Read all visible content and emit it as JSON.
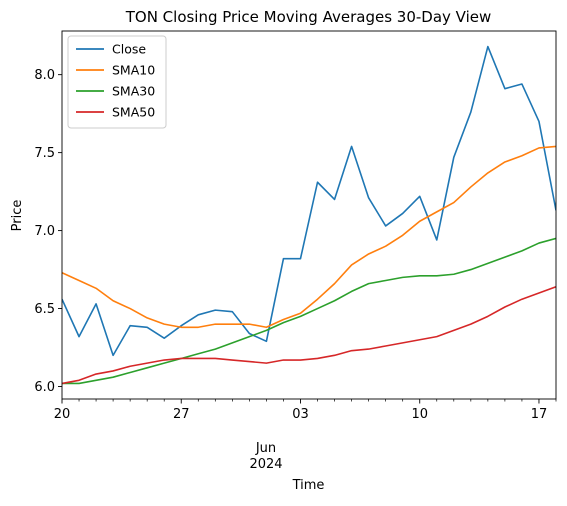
{
  "chart_data": {
    "type": "line",
    "title": "TON Closing Price Moving Averages 30-Day View",
    "xlabel": "Time",
    "ylabel": "Price",
    "x_start": "2024-05-20",
    "x": [
      "2024-05-20",
      "2024-05-21",
      "2024-05-22",
      "2024-05-23",
      "2024-05-24",
      "2024-05-25",
      "2024-05-26",
      "2024-05-27",
      "2024-05-28",
      "2024-05-29",
      "2024-05-30",
      "2024-05-31",
      "2024-06-01",
      "2024-06-02",
      "2024-06-03",
      "2024-06-04",
      "2024-06-05",
      "2024-06-06",
      "2024-06-07",
      "2024-06-08",
      "2024-06-09",
      "2024-06-10",
      "2024-06-11",
      "2024-06-12",
      "2024-06-13",
      "2024-06-14",
      "2024-06-15",
      "2024-06-16",
      "2024-06-17",
      "2024-06-18"
    ],
    "xlim": [
      "2024-05-20",
      "2024-06-18"
    ],
    "ylim": [
      5.92,
      8.28
    ],
    "grid": false,
    "legend_position": "top-left",
    "x_ticks": [
      {
        "date": "2024-05-20",
        "label": "20"
      },
      {
        "date": "2024-05-27",
        "label": "27"
      },
      {
        "date": "2024-06-03",
        "label": "03"
      },
      {
        "date": "2024-06-10",
        "label": "10"
      },
      {
        "date": "2024-06-17",
        "label": "17"
      }
    ],
    "x_minor_ticks": [
      "2024-05-21",
      "2024-05-22",
      "2024-05-23",
      "2024-05-24",
      "2024-05-25",
      "2024-05-26",
      "2024-05-28",
      "2024-05-29",
      "2024-05-30",
      "2024-05-31",
      "2024-06-01",
      "2024-06-02",
      "2024-06-04",
      "2024-06-05",
      "2024-06-06",
      "2024-06-07",
      "2024-06-08",
      "2024-06-09",
      "2024-06-11",
      "2024-06-12",
      "2024-06-13",
      "2024-06-14",
      "2024-06-15",
      "2024-06-16",
      "2024-06-18"
    ],
    "x_secondary_labels": [
      "Jun",
      "2024"
    ],
    "y_ticks": [
      {
        "value": 6.0,
        "label": "6.0"
      },
      {
        "value": 6.5,
        "label": "6.5"
      },
      {
        "value": 7.0,
        "label": "7.0"
      },
      {
        "value": 7.5,
        "label": "7.5"
      },
      {
        "value": 8.0,
        "label": "8.0"
      }
    ],
    "series": [
      {
        "name": "Close",
        "color": "#1f77b4",
        "values": [
          6.56,
          6.32,
          6.53,
          6.2,
          6.39,
          6.38,
          6.31,
          6.39,
          6.46,
          6.49,
          6.48,
          6.34,
          6.29,
          6.82,
          6.82,
          7.31,
          7.2,
          7.54,
          7.21,
          7.03,
          7.11,
          7.22,
          6.94,
          7.47,
          7.76,
          8.18,
          7.91,
          7.94,
          7.7,
          7.13
        ]
      },
      {
        "name": "SMA10",
        "color": "#ff7f0e",
        "values": [
          6.73,
          6.68,
          6.63,
          6.55,
          6.5,
          6.44,
          6.4,
          6.38,
          6.38,
          6.4,
          6.4,
          6.4,
          6.38,
          6.43,
          6.47,
          6.56,
          6.66,
          6.78,
          6.85,
          6.9,
          6.97,
          7.06,
          7.12,
          7.18,
          7.28,
          7.37,
          7.44,
          7.48,
          7.53,
          7.54
        ]
      },
      {
        "name": "SMA30",
        "color": "#2ca02c",
        "values": [
          6.02,
          6.02,
          6.04,
          6.06,
          6.09,
          6.12,
          6.15,
          6.18,
          6.21,
          6.24,
          6.28,
          6.32,
          6.36,
          6.41,
          6.45,
          6.5,
          6.55,
          6.61,
          6.66,
          6.68,
          6.7,
          6.71,
          6.71,
          6.72,
          6.75,
          6.79,
          6.83,
          6.87,
          6.92,
          6.95
        ]
      },
      {
        "name": "SMA50",
        "color": "#d62728",
        "values": [
          6.02,
          6.04,
          6.08,
          6.1,
          6.13,
          6.15,
          6.17,
          6.18,
          6.18,
          6.18,
          6.17,
          6.16,
          6.15,
          6.17,
          6.17,
          6.18,
          6.2,
          6.23,
          6.24,
          6.26,
          6.28,
          6.3,
          6.32,
          6.36,
          6.4,
          6.45,
          6.51,
          6.56,
          6.6,
          6.64
        ]
      }
    ]
  }
}
